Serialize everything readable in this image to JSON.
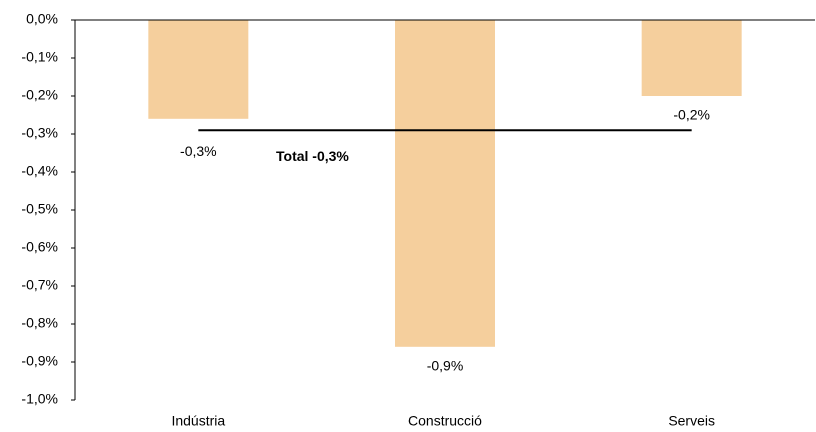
{
  "chart_data": {
    "type": "bar",
    "categories": [
      "Indústria",
      "Construcció",
      "Serveis"
    ],
    "values": [
      -0.26,
      -0.86,
      -0.2
    ],
    "value_labels": [
      "-0,3%",
      "-0,9%",
      "-0,2%"
    ],
    "color": "#f5cf9d",
    "ylim": [
      -1.0,
      0.0
    ],
    "yticks": [
      {
        "value": 0.0,
        "label": "0,0%"
      },
      {
        "value": -0.1,
        "label": "-0,1%"
      },
      {
        "value": -0.2,
        "label": "-0,2%"
      },
      {
        "value": -0.3,
        "label": "-0,3%"
      },
      {
        "value": -0.4,
        "label": "-0,4%"
      },
      {
        "value": -0.5,
        "label": "-0,5%"
      },
      {
        "value": -0.6,
        "label": "-0,6%"
      },
      {
        "value": -0.7,
        "label": "-0,7%"
      },
      {
        "value": -0.8,
        "label": "-0,8%"
      },
      {
        "value": -0.9,
        "label": "-0,9%"
      },
      {
        "value": -1.0,
        "label": "-1,0%"
      }
    ],
    "total": {
      "value": -0.29,
      "label": "Total -0,3%"
    },
    "grid": false
  }
}
